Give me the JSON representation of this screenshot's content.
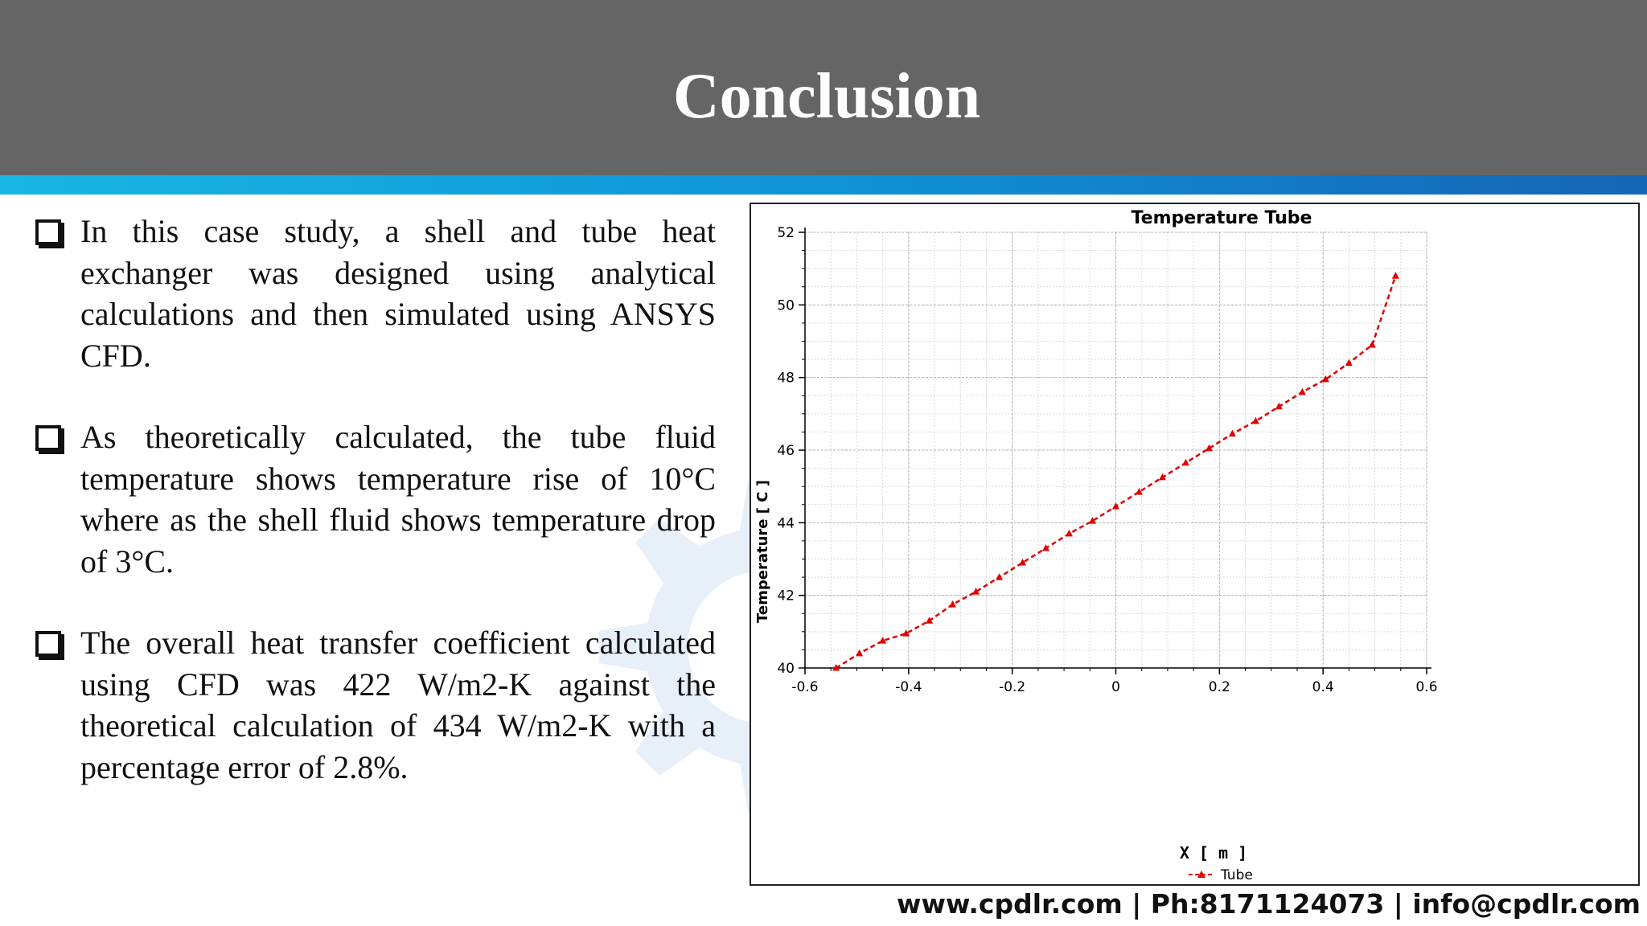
{
  "slide": {
    "title": "Conclusion",
    "bullets": [
      "In this case study, a shell and tube heat exchanger was designed using analytical calculations and then simulated using ANSYS CFD.",
      "As theoretically calculated, the tube fluid temperature shows temperature rise of 10°C where as the shell fluid shows temperature drop of 3°C.",
      "The overall heat transfer coefficient calculated using CFD was 422 W/m2-K against the theoretical calculation of 434 W/m2-K with a percentage error of 2.8%."
    ],
    "footer": "www.cpdlr.com | Ph:8171124073 | info@cpdlr.com"
  },
  "colors": {
    "header_bg": "#656565",
    "accent_blue": "#0f8fd6",
    "series_red": "#e00000"
  },
  "chart_data": {
    "type": "line",
    "title": "Temperature Tube",
    "xlabel": "X [ m ]",
    "ylabel": "Temperature [ C ]",
    "xlim": [
      -0.6,
      0.6
    ],
    "ylim": [
      40,
      52
    ],
    "xticks": [
      "-0.6",
      "-0.4",
      "-0.2",
      "0",
      "0.2",
      "0.4",
      "0.6"
    ],
    "yticks": [
      "40",
      "42",
      "44",
      "46",
      "48",
      "50",
      "52"
    ],
    "grid": true,
    "legend_position": "bottom",
    "series": [
      {
        "name": "Tube",
        "style": "dashed line with triangle markers",
        "color": "#e00000",
        "points": [
          [
            -0.54,
            40.0
          ],
          [
            -0.495,
            40.4
          ],
          [
            -0.45,
            40.75
          ],
          [
            -0.405,
            40.95
          ],
          [
            -0.36,
            41.3
          ],
          [
            -0.315,
            41.75
          ],
          [
            -0.27,
            42.1
          ],
          [
            -0.225,
            42.5
          ],
          [
            -0.18,
            42.9
          ],
          [
            -0.135,
            43.3
          ],
          [
            -0.09,
            43.7
          ],
          [
            -0.045,
            44.05
          ],
          [
            0.0,
            44.45
          ],
          [
            0.045,
            44.85
          ],
          [
            0.09,
            45.25
          ],
          [
            0.135,
            45.65
          ],
          [
            0.18,
            46.05
          ],
          [
            0.225,
            46.45
          ],
          [
            0.27,
            46.8
          ],
          [
            0.315,
            47.2
          ],
          [
            0.36,
            47.6
          ],
          [
            0.405,
            47.95
          ],
          [
            0.45,
            48.4
          ],
          [
            0.495,
            48.9
          ],
          [
            0.54,
            50.8
          ]
        ]
      }
    ]
  }
}
